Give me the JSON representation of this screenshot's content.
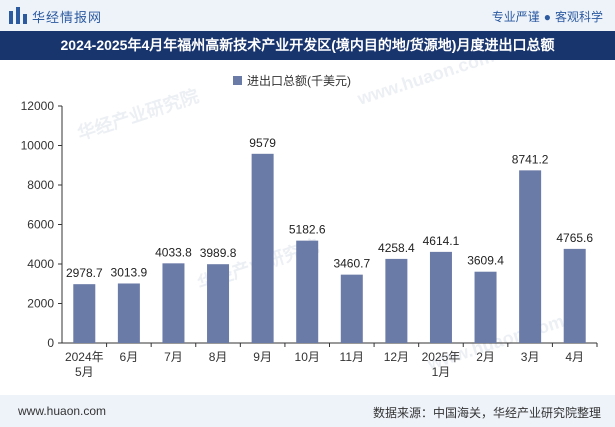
{
  "header": {
    "brand": "华经情报网",
    "tagline_left": "专业严谨",
    "tagline_sep": "●",
    "tagline_right": "客观科学"
  },
  "title_bar": "2024-2025年4月年福州高新技术产业开发区(境内目的地/货源地)月度进出口总额",
  "footer": {
    "url": "www.huaon.com",
    "source": "数据来源：中国海关，华经产业研究院整理"
  },
  "watermarks": [
    "华经产业研究院",
    "www.huaon.com"
  ],
  "colors": {
    "bar": "#6b7ba7",
    "title_bg": "#19356e",
    "brand": "#2c5aa0"
  },
  "chart_data": {
    "type": "bar",
    "categories": [
      "2024年\n5月",
      "6月",
      "7月",
      "8月",
      "9月",
      "10月",
      "11月",
      "12月",
      "2025年\n1月",
      "2月",
      "3月",
      "4月"
    ],
    "series": [
      {
        "name": "进出口总额(千美元)",
        "values": [
          2978.7,
          3013.9,
          4033.8,
          3989.8,
          9579,
          5182.6,
          3460.7,
          4258.4,
          4614.1,
          3609.4,
          8741.2,
          4765.6
        ]
      }
    ],
    "value_labels": [
      "2978.7",
      "3013.9",
      "4033.8",
      "3989.8",
      "9579",
      "5182.6",
      "3460.7",
      "4258.4",
      "4614.1",
      "3609.4",
      "8741.2",
      "4765.6"
    ],
    "ylim": [
      0,
      12000
    ],
    "yticks": [
      0,
      2000,
      4000,
      6000,
      8000,
      10000,
      12000
    ],
    "legend_position": "top-center",
    "grid": false
  }
}
